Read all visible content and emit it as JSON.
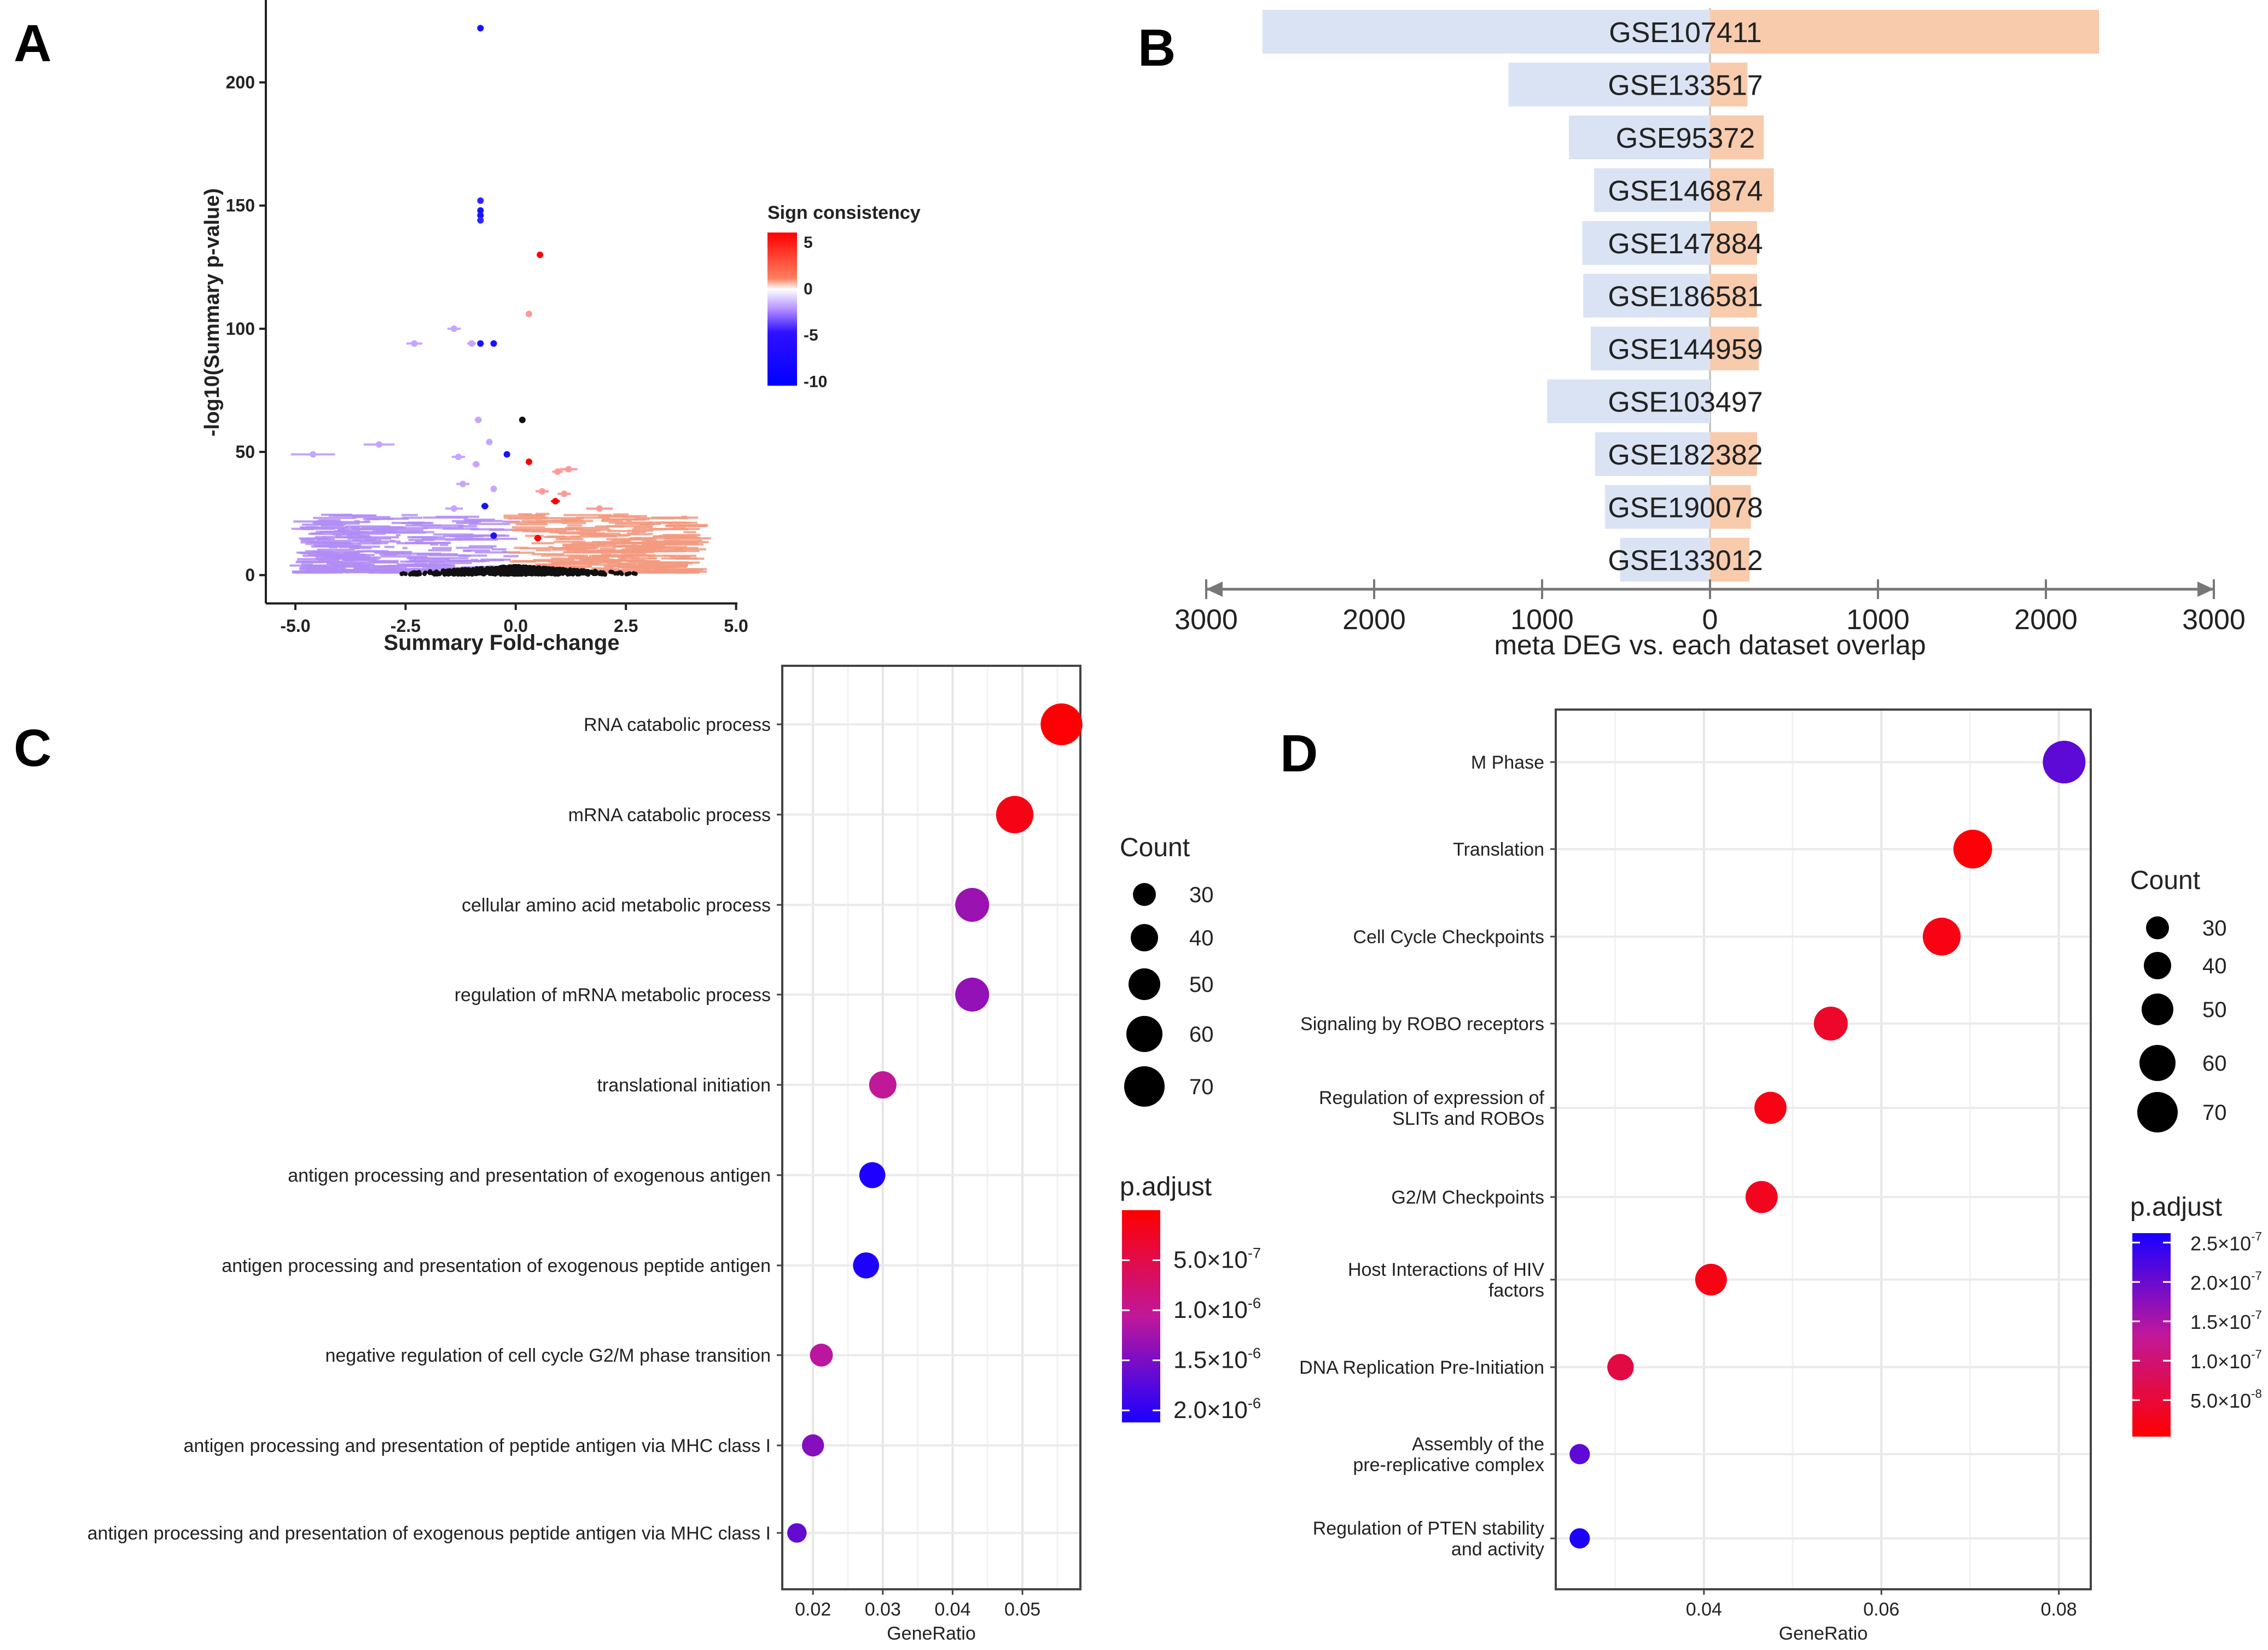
{
  "panel_labels": [
    "A",
    "B",
    "C",
    "D"
  ],
  "chart_data": [
    {
      "panel": "A",
      "type": "scatter",
      "xlabel": "Summary Fold-change",
      "ylabel": "-log10(Summary p-value)",
      "xlim": [
        -5.67,
        5.03
      ],
      "ylim": [
        -11.5,
        229
      ],
      "xticks": [
        -5.0,
        -2.5,
        0.0,
        2.5,
        5.0
      ],
      "xtick_labels": [
        "-5.0",
        "-2.5",
        "0.0",
        "2.5",
        "5.0"
      ],
      "yticks": [
        0,
        50,
        100,
        150,
        200
      ],
      "ytick_labels": [
        "0",
        "50",
        "100",
        "150",
        "200"
      ],
      "legend": {
        "title": "Sign consistency",
        "ticks": [
          5,
          0,
          -5,
          -10
        ],
        "tick_labels": [
          "5",
          "0",
          "-5",
          "-10"
        ],
        "range": [
          -10.5,
          6
        ],
        "colors": {
          "high": "#ff0000",
          "mid": "#ffffff",
          "low": "#0000ff"
        },
        "placement": "right"
      },
      "points": [
        {
          "x": -0.8,
          "y": 222,
          "sign": -9,
          "err": 0.03
        },
        {
          "x": -0.8,
          "y": 152,
          "sign": -8,
          "err": 0.03
        },
        {
          "x": -0.8,
          "y": 148,
          "sign": -9,
          "err": 0.04
        },
        {
          "x": -0.8,
          "y": 146,
          "sign": -9,
          "err": 0.03
        },
        {
          "x": -0.8,
          "y": 144,
          "sign": -8,
          "err": 0.03
        },
        {
          "x": 0.55,
          "y": 130,
          "sign": 6,
          "err": 0.04
        },
        {
          "x": 0.3,
          "y": 106,
          "sign": 2,
          "err": 0.03
        },
        {
          "x": -1.4,
          "y": 100,
          "sign": -2,
          "err": 0.15
        },
        {
          "x": -2.3,
          "y": 94,
          "sign": -2,
          "err": 0.18
        },
        {
          "x": -1.0,
          "y": 94,
          "sign": -2,
          "err": 0.1
        },
        {
          "x": -0.8,
          "y": 94,
          "sign": -9,
          "err": 0.06
        },
        {
          "x": -0.5,
          "y": 94,
          "sign": -9,
          "err": 0.05
        },
        {
          "x": -0.85,
          "y": 63,
          "sign": -2,
          "err": 0.08
        },
        {
          "x": 0.15,
          "y": 63,
          "sign": 0,
          "err": 0.02
        },
        {
          "x": -4.6,
          "y": 49,
          "sign": -2,
          "err": 0.5
        },
        {
          "x": -3.1,
          "y": 53,
          "sign": -2,
          "err": 0.35
        },
        {
          "x": -0.6,
          "y": 54,
          "sign": -2,
          "err": 0.05
        },
        {
          "x": -1.3,
          "y": 48,
          "sign": -2,
          "err": 0.15
        },
        {
          "x": -0.2,
          "y": 49,
          "sign": -9,
          "err": 0.04
        },
        {
          "x": 0.3,
          "y": 46,
          "sign": 6,
          "err": 0.04
        },
        {
          "x": -0.9,
          "y": 45,
          "sign": -2,
          "err": 0.08
        },
        {
          "x": 1.2,
          "y": 43,
          "sign": 2,
          "err": 0.2
        },
        {
          "x": 0.95,
          "y": 42,
          "sign": 2,
          "err": 0.12
        },
        {
          "x": -1.2,
          "y": 37,
          "sign": -2,
          "err": 0.15
        },
        {
          "x": -0.5,
          "y": 35,
          "sign": -2,
          "err": 0.05
        },
        {
          "x": 0.6,
          "y": 34,
          "sign": 2,
          "err": 0.15
        },
        {
          "x": 1.1,
          "y": 33,
          "sign": 2,
          "err": 0.15
        },
        {
          "x": 0.9,
          "y": 30,
          "sign": 6,
          "err": 0.1
        },
        {
          "x": -0.7,
          "y": 28,
          "sign": -9,
          "err": 0.08
        },
        {
          "x": -1.4,
          "y": 27,
          "sign": -2,
          "err": 0.2
        },
        {
          "x": 1.9,
          "y": 27,
          "sign": 2,
          "err": 0.3
        },
        {
          "x": 0.5,
          "y": 15,
          "sign": 6,
          "err": 0.08
        },
        {
          "x": -0.5,
          "y": 16,
          "sign": -9,
          "err": 0.06
        }
      ]
    },
    {
      "panel": "B",
      "type": "bar",
      "xlabel": "meta DEG vs. each dataset overlap",
      "xlim": [
        -3000,
        3000
      ],
      "xticks": [
        -3000,
        -2000,
        -1000,
        0,
        1000,
        2000,
        3000
      ],
      "xtick_labels": [
        "3000",
        "2000",
        "1000",
        "0",
        "1000",
        "2000",
        "3000"
      ],
      "colors": {
        "left": "#dae3f3",
        "right": "#f8cbad"
      },
      "categories": [
        "GSE107411",
        "GSE133517",
        "GSE95372",
        "GSE146874",
        "GSE147884",
        "GSE186581",
        "GSE144959",
        "GSE103497",
        "GSE182382",
        "GSE190078",
        "GSE133012"
      ],
      "series": [
        {
          "side": "left",
          "values": [
            2665,
            1200,
            840,
            690,
            760,
            755,
            710,
            970,
            685,
            625,
            535
          ]
        },
        {
          "side": "right",
          "values": [
            2316,
            223,
            320,
            380,
            280,
            280,
            290,
            0,
            280,
            243,
            235
          ]
        }
      ]
    },
    {
      "panel": "C",
      "type": "scatter",
      "xlabel": "GeneRatio",
      "xlim": [
        0.0156,
        0.0583
      ],
      "xticks": [
        0.02,
        0.03,
        0.04,
        0.05
      ],
      "xtick_labels": [
        "0.02",
        "0.03",
        "0.04",
        "0.05"
      ],
      "grid": true,
      "categories": [
        "RNA catabolic process",
        "mRNA catabolic process",
        "cellular amino acid metabolic process",
        "regulation of mRNA metabolic process",
        "translational initiation",
        "antigen processing and presentation of exogenous antigen",
        "antigen processing and presentation of exogenous peptide antigen",
        "negative regulation of cell cycle G2/M phase transition",
        "antigen processing and presentation of peptide antigen via MHC class I",
        "antigen processing and presentation of exogenous peptide antigen via MHC class I"
      ],
      "gene_ratio": [
        0.0556,
        0.0489,
        0.0428,
        0.0428,
        0.03,
        0.0285,
        0.0276,
        0.0212,
        0.02,
        0.0177
      ],
      "count": [
        73,
        63,
        55,
        55,
        40,
        37,
        37,
        30,
        28,
        22
      ],
      "p_adjust": [
        2e-08,
        1.5e-07,
        1.3e-06,
        1.35e-06,
        1.05e-06,
        2.1e-06,
        2.1e-06,
        1.1e-06,
        1.45e-06,
        1.65e-06
      ],
      "size_legend": {
        "title": "Count",
        "values": [
          30,
          40,
          50,
          60,
          70
        ],
        "labels": [
          "30",
          "40",
          "50",
          "60",
          "70"
        ]
      },
      "color_legend": {
        "title": "p.adjust",
        "range": [
          0,
          2.12e-06
        ],
        "ticks": [
          5e-07,
          1e-06,
          1.5e-06,
          2e-06
        ],
        "tick_mantissa": [
          "5.0",
          "1.0",
          "1.5",
          "2.0"
        ],
        "tick_exponent": [
          "-7",
          "-6",
          "-6",
          "-6"
        ],
        "orientation": "low-top",
        "colors": {
          "low": "#ff0000",
          "high": "#0000ff"
        }
      }
    },
    {
      "panel": "D",
      "type": "scatter",
      "xlabel": "GeneRatio",
      "xlim": [
        0.0233,
        0.0836
      ],
      "xticks": [
        0.04,
        0.06,
        0.08
      ],
      "xtick_labels": [
        "0.04",
        "0.06",
        "0.08"
      ],
      "grid": true,
      "categories": [
        [
          "M Phase"
        ],
        [
          "Translation"
        ],
        [
          "Cell Cycle Checkpoints"
        ],
        [
          "Signaling by ROBO receptors"
        ],
        [
          "Regulation of expression of",
          "SLITs and ROBOs"
        ],
        [
          "G2/M Checkpoints"
        ],
        [
          "Host Interactions of HIV",
          "factors"
        ],
        [
          "DNA Replication Pre-Initiation"
        ],
        [
          "Assembly of the",
          "pre-replicative complex"
        ],
        [
          "Regulation of PTEN stability",
          "and activity"
        ]
      ],
      "gene_ratio": [
        0.0806,
        0.0703,
        0.0668,
        0.0543,
        0.0475,
        0.0465,
        0.0408,
        0.0306,
        0.026,
        0.026
      ],
      "count": [
        75,
        66,
        64,
        55,
        51,
        51,
        50,
        38,
        24,
        24
      ],
      "p_adjust": [
        2.1e-07,
        1e-08,
        2e-08,
        4e-08,
        2e-08,
        3e-08,
        2e-08,
        6e-08,
        2.1e-07,
        2.6e-07
      ],
      "size_legend": {
        "title": "Count",
        "values": [
          30,
          40,
          50,
          60,
          70
        ],
        "labels": [
          "30",
          "40",
          "50",
          "60",
          "70"
        ]
      },
      "color_legend": {
        "title": "p.adjust",
        "range": [
          3.6e-09,
          2.62e-07
        ],
        "ticks": [
          2.5e-07,
          2e-07,
          1.5e-07,
          1e-07,
          5e-08
        ],
        "tick_mantissa": [
          "2.5",
          "2.0",
          "1.5",
          "1.0",
          "5.0"
        ],
        "tick_exponent": [
          "-7",
          "-7",
          "-7",
          "-7",
          "-8"
        ],
        "orientation": "low-bottom",
        "colors": {
          "low": "#ff0000",
          "high": "#0000ff"
        }
      }
    }
  ]
}
